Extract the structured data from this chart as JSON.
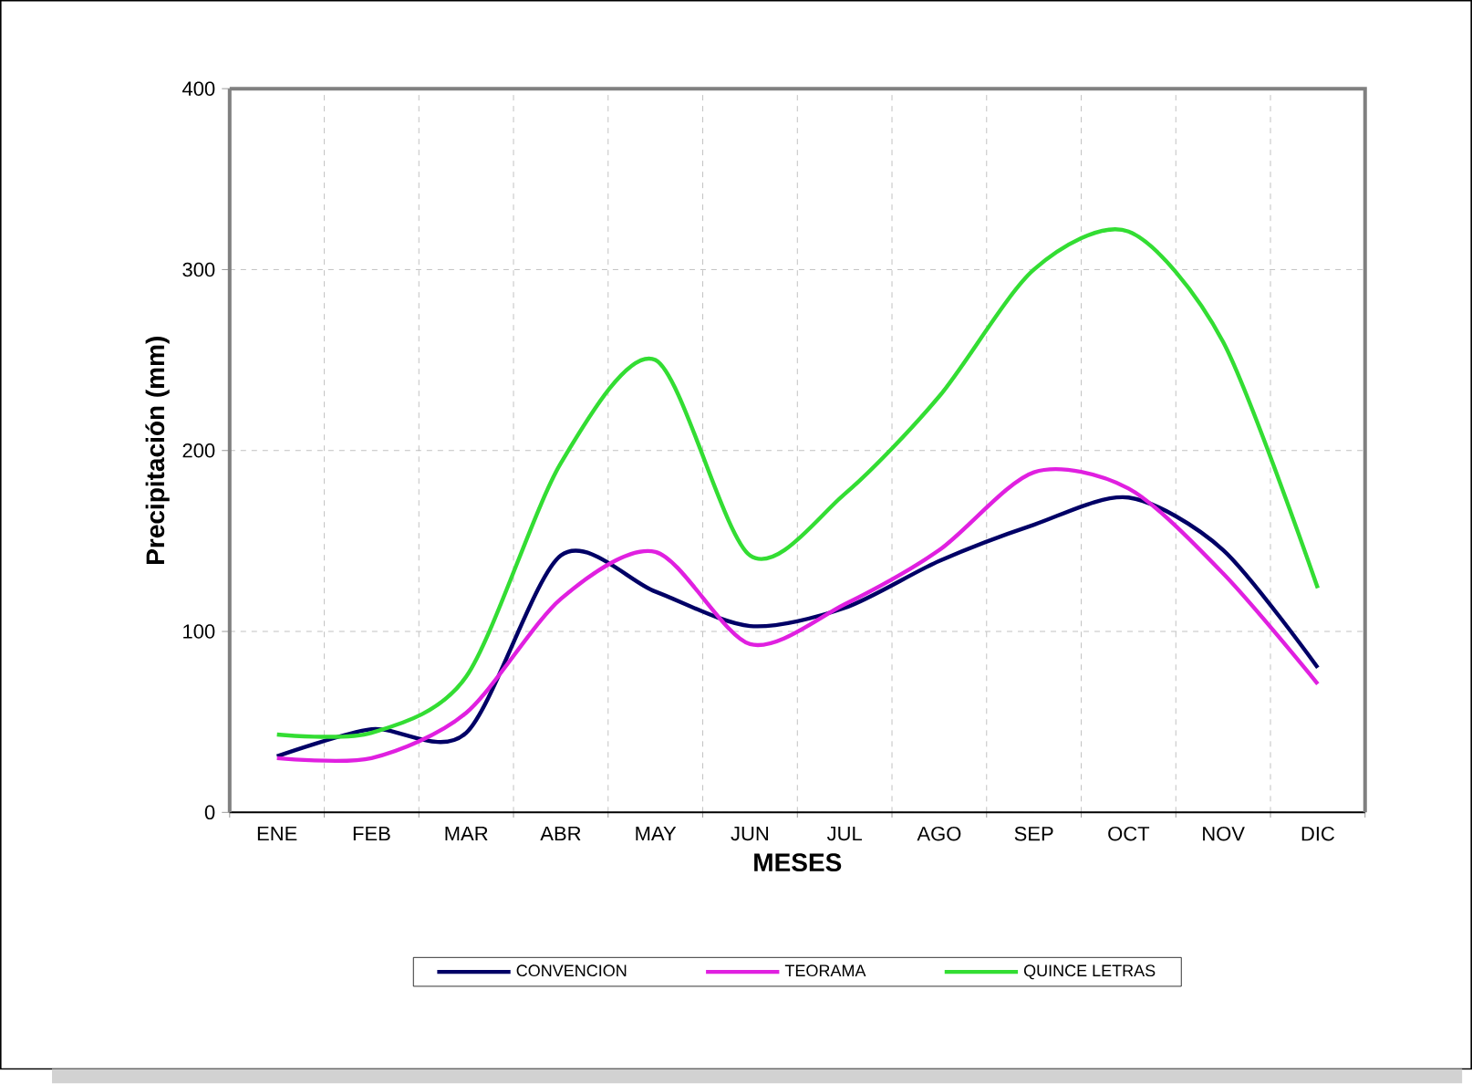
{
  "chart_data": {
    "type": "line",
    "xlabel": "MESES",
    "ylabel": "Precipitación (mm)",
    "categories": [
      "ENE",
      "FEB",
      "MAR",
      "ABR",
      "MAY",
      "JUN",
      "JUL",
      "AGO",
      "SEP",
      "OCT",
      "NOV",
      "DIC"
    ],
    "series": [
      {
        "name": "CONVENCION",
        "color": "#000066",
        "values": [
          31,
          46,
          44,
          142,
          122,
          103,
          113,
          139,
          159,
          174,
          145,
          80
        ]
      },
      {
        "name": "TEORAMA",
        "color": "#e020e0",
        "values": [
          30,
          30,
          55,
          118,
          144,
          93,
          115,
          145,
          188,
          179,
          132,
          71
        ]
      },
      {
        "name": "QUINCE LETRAS",
        "color": "#33dd33",
        "values": [
          43,
          44,
          75,
          193,
          250,
          142,
          176,
          230,
          300,
          321,
          260,
          124
        ]
      }
    ],
    "ylim": [
      0,
      400
    ],
    "yticks": [
      0,
      100,
      200,
      300,
      400
    ],
    "grid": true,
    "legend": "bottom",
    "marker": "none",
    "line_style": "solid"
  }
}
